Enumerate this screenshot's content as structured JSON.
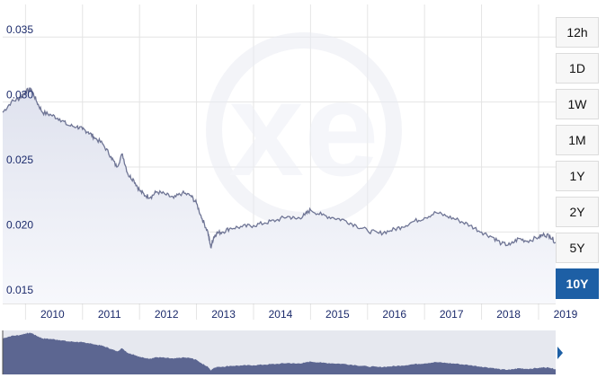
{
  "range_buttons": [
    {
      "label": "12h",
      "active": false
    },
    {
      "label": "1D",
      "active": false
    },
    {
      "label": "1W",
      "active": false
    },
    {
      "label": "1M",
      "active": false
    },
    {
      "label": "1Y",
      "active": false
    },
    {
      "label": "2Y",
      "active": false
    },
    {
      "label": "5Y",
      "active": false
    },
    {
      "label": "10Y",
      "active": true
    }
  ],
  "watermark": {
    "text": "xe"
  },
  "colors": {
    "line": "#6f7595",
    "area_top": "#dfe2ee",
    "area_bottom": "#f7f8fc",
    "navigator_fill": "#5c6691",
    "navigator_bg": "#e6e8ef",
    "active_button": "#1d5fa5",
    "tick_label": "#1b2a6b"
  },
  "chart_data": {
    "type": "area",
    "title": "",
    "xlabel": "",
    "ylabel": "",
    "x_ticks": [
      "2010",
      "2011",
      "2012",
      "2013",
      "2014",
      "2015",
      "2016",
      "2017",
      "2018",
      "2019"
    ],
    "y_ticks": [
      "0.015",
      "0.020",
      "0.025",
      "0.030",
      "0.035"
    ],
    "xlim": [
      2009.6,
      2019.3
    ],
    "ylim": [
      0.0145,
      0.0375
    ],
    "grid": true,
    "series": [
      {
        "x": [
          2009.6,
          2009.75,
          2009.9,
          2010.0,
          2010.1,
          2010.2,
          2010.3,
          2010.45,
          2010.6,
          2010.75,
          2010.9,
          2011.0,
          2011.1,
          2011.2,
          2011.35,
          2011.5,
          2011.6,
          2011.7,
          2011.8,
          2011.9,
          2012.0,
          2012.1,
          2012.2,
          2012.3,
          2012.45,
          2012.6,
          2012.75,
          2012.9,
          2013.0,
          2013.1,
          2013.2,
          2013.25,
          2013.3,
          2013.35,
          2013.45,
          2013.6,
          2013.8,
          2014.0,
          2014.2,
          2014.4,
          2014.6,
          2014.75,
          2014.9,
          2015.0,
          2015.2,
          2015.4,
          2015.6,
          2015.8,
          2016.0,
          2016.2,
          2016.4,
          2016.6,
          2016.8,
          2017.0,
          2017.2,
          2017.4,
          2017.6,
          2017.8,
          2018.0,
          2018.2,
          2018.35,
          2018.5,
          2018.65,
          2018.8,
          2019.0,
          2019.1,
          2019.2,
          2019.3
        ],
        "values": [
          0.0292,
          0.03,
          0.0303,
          0.0308,
          0.031,
          0.03,
          0.0292,
          0.029,
          0.0287,
          0.0282,
          0.0281,
          0.0279,
          0.0277,
          0.0273,
          0.0268,
          0.0258,
          0.025,
          0.026,
          0.0244,
          0.024,
          0.0232,
          0.0228,
          0.0227,
          0.0231,
          0.0229,
          0.0226,
          0.023,
          0.0228,
          0.0222,
          0.021,
          0.02,
          0.0188,
          0.0196,
          0.0199,
          0.02,
          0.0203,
          0.0204,
          0.0205,
          0.0207,
          0.0209,
          0.0212,
          0.021,
          0.0213,
          0.0217,
          0.0213,
          0.0211,
          0.0209,
          0.0205,
          0.0201,
          0.0199,
          0.0201,
          0.0204,
          0.0208,
          0.0211,
          0.0215,
          0.0212,
          0.0209,
          0.0205,
          0.02,
          0.0196,
          0.0191,
          0.019,
          0.0195,
          0.0193,
          0.0196,
          0.0198,
          0.0197,
          0.0192
        ]
      }
    ]
  }
}
